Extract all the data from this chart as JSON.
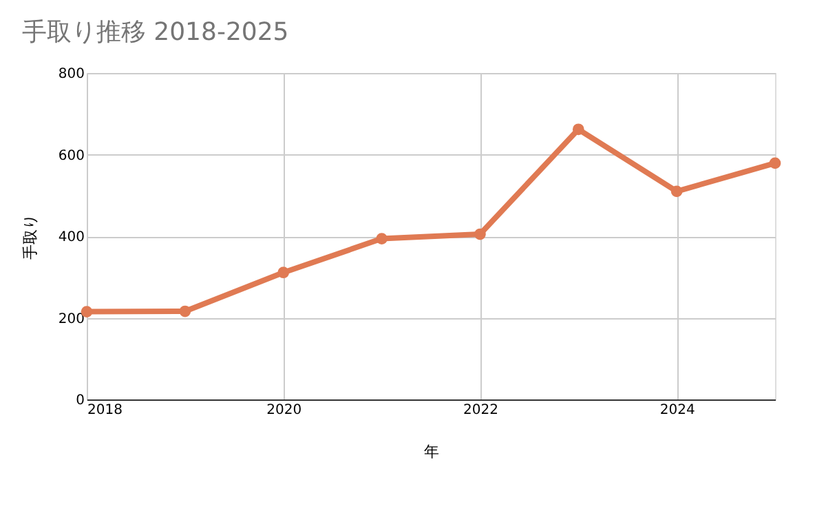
{
  "chart_data": {
    "type": "line",
    "title": "手取り推移 2018-2025",
    "xlabel": "年",
    "ylabel": "手取り",
    "x": [
      2018,
      2019,
      2020,
      2021,
      2022,
      2023,
      2024,
      2025
    ],
    "series": [
      {
        "color": "#e07a53",
        "values": [
          215,
          216,
          311,
          394,
          405,
          662,
          510,
          579
        ]
      }
    ],
    "xlim": [
      2018,
      2025
    ],
    "xticks": [
      2018,
      2020,
      2022,
      2024
    ],
    "ylim": [
      0,
      800
    ],
    "yticks": [
      0,
      200,
      400,
      600,
      800
    ],
    "grid": true,
    "marker": "circle",
    "line_style": "solid"
  }
}
